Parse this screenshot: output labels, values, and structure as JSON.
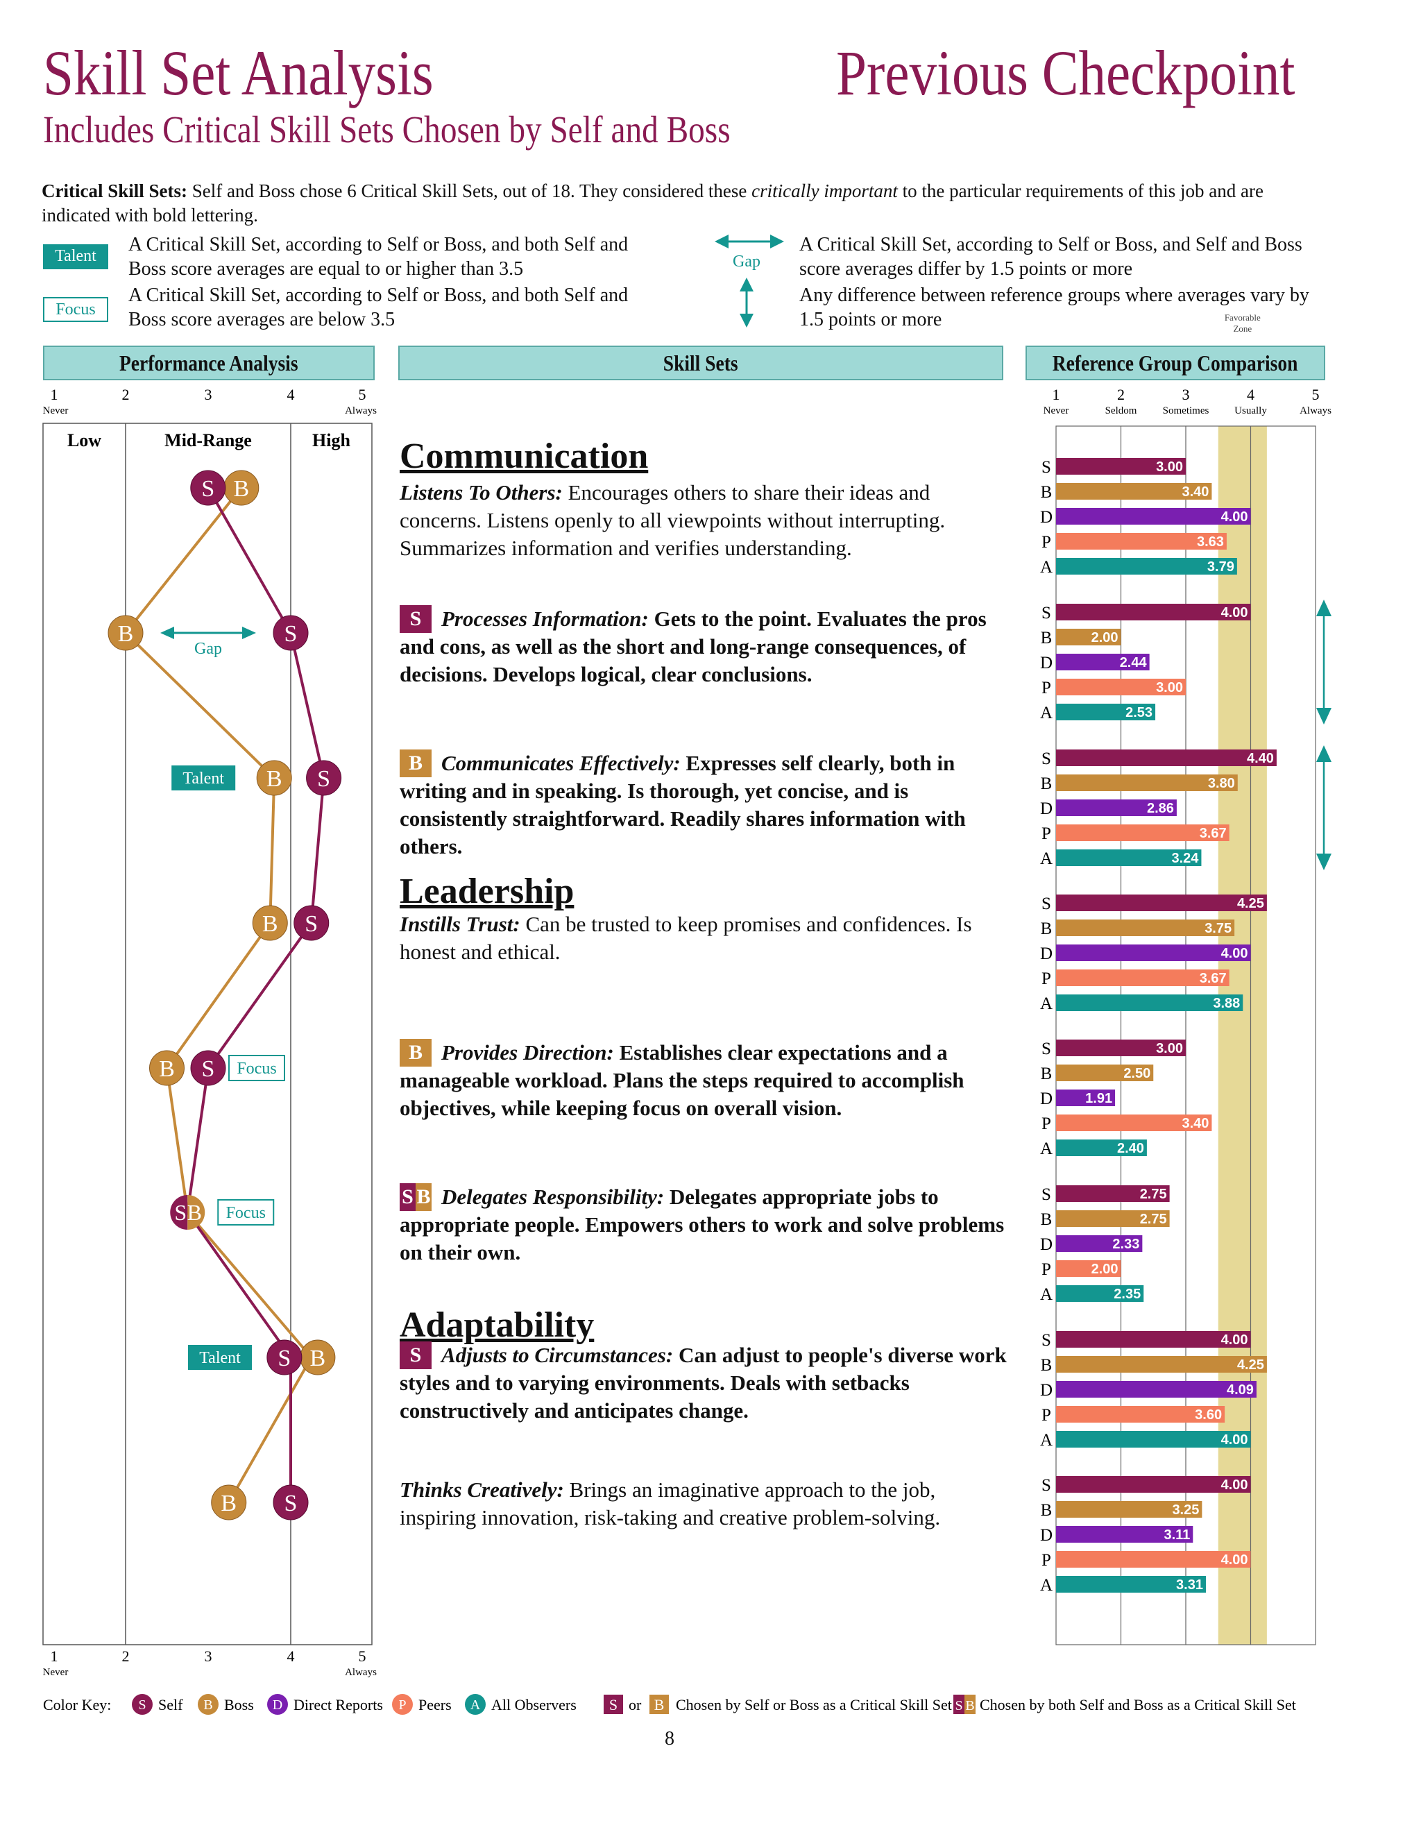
{
  "header": {
    "title": "Skill Set Analysis",
    "right_title": "Previous Checkpoint",
    "subtitle": "Includes Critical Skill Sets Chosen by Self and Boss"
  },
  "intro": {
    "lead": "Critical Skill Sets:",
    "text1": " Self and Boss chose 6 Critical Skill Sets, out of 18.  They considered these ",
    "emph": "critically important",
    "text2": " to the particular requirements of this job and are indicated with bold lettering."
  },
  "legend": {
    "talent_tag": "Talent",
    "talent_text": "A Critical Skill Set, according to Self or Boss, and both Self and Boss score averages are equal to or higher than 3.5",
    "focus_tag": "Focus",
    "focus_text": "A Critical Skill Set, according to Self or Boss, and both Self and Boss score averages are below 3.5",
    "gap_label": "Gap",
    "gap_h_text": "A Critical Skill Set, according to Self or Boss, and Self and Boss score averages differ by 1.5 points or more",
    "gap_v_text": "Any difference between reference groups where averages vary by 1.5 points or more"
  },
  "panels": {
    "performance": "Performance Analysis",
    "skills": "Skill Sets",
    "reference": "Reference Group Comparison"
  },
  "scale": {
    "numbers": [
      "1",
      "2",
      "3",
      "4",
      "5"
    ],
    "never": "Never",
    "seldom": "Seldom",
    "sometimes": "Sometimes",
    "usually": "Usually",
    "always": "Always",
    "favorable_zone": "Favorable Zone",
    "low": "Low",
    "mid": "Mid-Range",
    "high": "High"
  },
  "sections": [
    {
      "title": "Communication"
    },
    {
      "title": "Leadership"
    },
    {
      "title": "Adaptability"
    }
  ],
  "skills": [
    {
      "name": "Listens To Others:",
      "desc": "Encourages others to share their ideas and concerns.  Listens openly to all viewpoints without interrupting.  Summarizes information and verifies understanding.",
      "badge": "",
      "critical": false,
      "tag": "",
      "gap_h": false,
      "gap_v": false,
      "self": 3.0,
      "boss": 3.4,
      "direct": 4.0,
      "peers": 3.63,
      "all": 3.79
    },
    {
      "name": "Processes Information:",
      "desc": "Gets to the point.  Evaluates the pros and cons, as well as the short and long-range consequences, of decisions.  Develops logical, clear conclusions.",
      "badge": "S",
      "critical": true,
      "tag": "",
      "gap_h": true,
      "gap_v": true,
      "self": 4.0,
      "boss": 2.0,
      "direct": 2.44,
      "peers": 3.0,
      "all": 2.53
    },
    {
      "name": "Communicates Effectively:",
      "desc": "Expresses self clearly, both in writing and in speaking.  Is thorough, yet concise, and is consistently straightforward.  Readily shares information with others.",
      "badge": "B",
      "critical": true,
      "tag": "Talent",
      "gap_h": false,
      "gap_v": true,
      "self": 4.4,
      "boss": 3.8,
      "direct": 2.86,
      "peers": 3.67,
      "all": 3.24
    },
    {
      "name": "Instills Trust:",
      "desc": "Can be trusted to keep promises and confidences.  Is honest and ethical.",
      "badge": "",
      "critical": false,
      "tag": "",
      "gap_h": false,
      "gap_v": false,
      "self": 4.25,
      "boss": 3.75,
      "direct": 4.0,
      "peers": 3.67,
      "all": 3.88
    },
    {
      "name": "Provides Direction:",
      "desc": "Establishes clear expectations and a manageable workload.  Plans the steps required to accomplish objectives, while keeping focus on overall vision.",
      "badge": "B",
      "critical": true,
      "tag": "Focus",
      "gap_h": false,
      "gap_v": false,
      "self": 3.0,
      "boss": 2.5,
      "direct": 1.91,
      "peers": 3.4,
      "all": 2.4
    },
    {
      "name": "Delegates Responsibility:",
      "desc": "Delegates appropriate jobs to appropriate people.  Empowers others to work and solve problems on their own.",
      "badge": "SB",
      "critical": true,
      "tag": "Focus",
      "gap_h": false,
      "gap_v": false,
      "self": 2.75,
      "boss": 2.75,
      "direct": 2.33,
      "peers": 2.0,
      "all": 2.35
    },
    {
      "name": "Adjusts to Circumstances:",
      "desc": "Can adjust to people's diverse work styles and to varying environments.  Deals with setbacks constructively and anticipates change.",
      "badge": "S",
      "critical": true,
      "tag": "Talent",
      "gap_h": false,
      "gap_v": false,
      "self": 4.0,
      "boss": 4.25,
      "direct": 4.09,
      "peers": 3.6,
      "all": 4.0
    },
    {
      "name": "Thinks Creatively:",
      "desc": "Brings an imaginative approach to the job, inspiring innovation, risk-taking and creative problem-solving.",
      "badge": "",
      "critical": false,
      "tag": "",
      "gap_h": false,
      "gap_v": false,
      "self": 4.0,
      "boss": 3.25,
      "direct": 3.11,
      "peers": 4.0,
      "all": 3.31
    }
  ],
  "bar_letters": [
    "S",
    "B",
    "D",
    "P",
    "A"
  ],
  "colors": {
    "self": "#8a1a52",
    "boss": "#c58a3a",
    "direct": "#7a1fb0",
    "peers": "#f47c5c",
    "all": "#139690",
    "teal": "#139690",
    "zone": "#e6d997"
  },
  "key": {
    "label": "Color Key:",
    "items": [
      {
        "letter": "S",
        "text": "Self"
      },
      {
        "letter": "B",
        "text": "Boss"
      },
      {
        "letter": "D",
        "text": "Direct Reports"
      },
      {
        "letter": "P",
        "text": "Peers"
      },
      {
        "letter": "A",
        "text": "All Observers"
      }
    ],
    "or": "or",
    "chosen_one": "Chosen by Self or Boss as a Critical Skill Set",
    "chosen_both": "Chosen by both Self and Boss as a Critical Skill Set"
  },
  "page_number": "8"
}
